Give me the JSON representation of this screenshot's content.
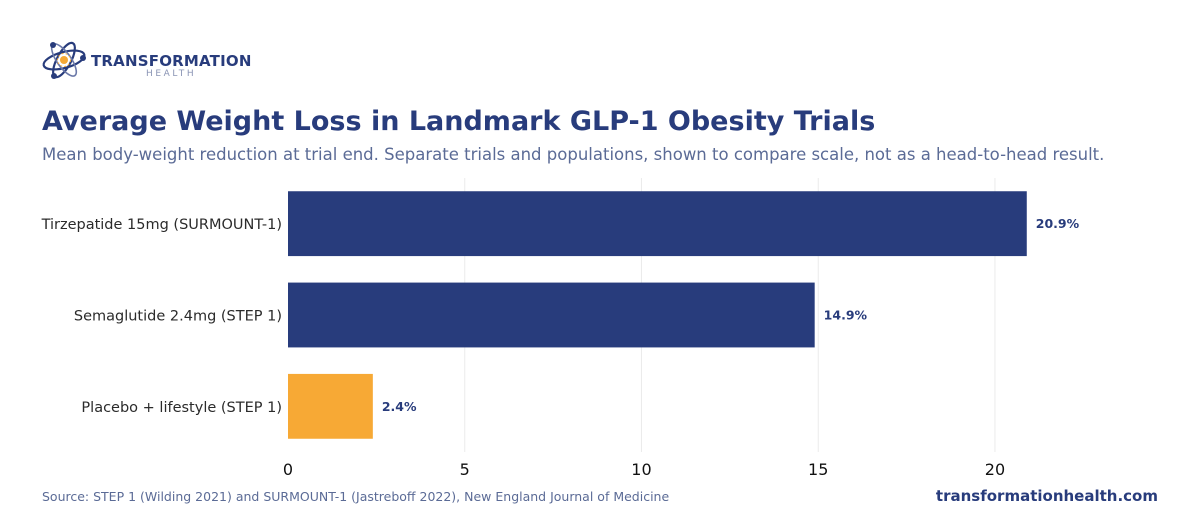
{
  "brand": {
    "name": "TRANSFORMATION",
    "tagline": "HEALTH",
    "logo_icon": "atom-orbit-icon",
    "colors": {
      "primary": "#283c7c",
      "accent": "#f7a935"
    }
  },
  "header": {
    "title": "Average Weight Loss in Landmark GLP-1 Obesity Trials",
    "subtitle": "Mean body-weight reduction at trial end. Separate trials and populations, shown to compare scale, not as a head-to-head result."
  },
  "chart_data": {
    "type": "bar",
    "orientation": "horizontal",
    "categories": [
      "Tirzepatide 15mg (SURMOUNT-1)",
      "Semaglutide 2.4mg (STEP 1)",
      "Placebo + lifestyle (STEP 1)"
    ],
    "values": [
      20.9,
      14.9,
      2.4
    ],
    "value_labels": [
      "20.9%",
      "14.9%",
      "2.4%"
    ],
    "colors": [
      "#283c7c",
      "#283c7c",
      "#f7a935"
    ],
    "xlim": [
      0,
      23
    ],
    "xticks": [
      0,
      5,
      10,
      15,
      20
    ],
    "grid": true,
    "legend": "none"
  },
  "footer": {
    "source": "Source: STEP 1 (Wilding 2021) and SURMOUNT-1 (Jastreboff 2022), New England Journal of Medicine",
    "site": "transformationhealth.com"
  }
}
